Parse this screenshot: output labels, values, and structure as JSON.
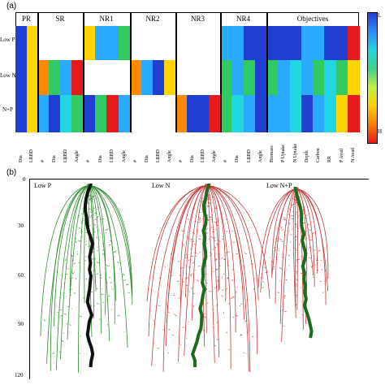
{
  "panel_a_label": "(a)",
  "panel_b_label": "(b)",
  "groups": [
    "PR",
    "SR",
    "NR1",
    "NR2",
    "NR3",
    "NR4",
    "Objectives"
  ],
  "row_labels": [
    "Low P",
    "Low N",
    "N+P"
  ],
  "columns": {
    "PR": [
      "Dia",
      "LRBD"
    ],
    "SR": [
      "#",
      "Dia",
      "LRBD",
      "Angle"
    ],
    "NR1": [
      "#",
      "Dia",
      "LRBD",
      "Angle"
    ],
    "NR2": [
      "#",
      "Dia",
      "LRBD",
      "Angle"
    ],
    "NR3": [
      "#",
      "Dia",
      "LRBD",
      "Angle"
    ],
    "NR4": [
      "#",
      "Dia",
      "LRBD",
      "Angle"
    ],
    "Objectives": [
      "Biomass",
      "P Uptake",
      "N Uptake",
      "Depth",
      "Carbon",
      "RR",
      "P Avail",
      "N Avail"
    ]
  },
  "legend": {
    "top": "L",
    "bottom": "H"
  },
  "colors": {
    "blue": "#1f3fd0",
    "lightblue": "#29a9ff",
    "cyan": "#21d6e0",
    "green": "#31c962",
    "yellow": "#ffd400",
    "orange": "#ff8a00",
    "red": "#e51b1b",
    "white": "#ffffff"
  },
  "y_ticks": [
    "0",
    "30",
    "60",
    "90",
    "120"
  ],
  "root_labels": [
    "Low P",
    "Low N",
    "Low N+P"
  ]
}
